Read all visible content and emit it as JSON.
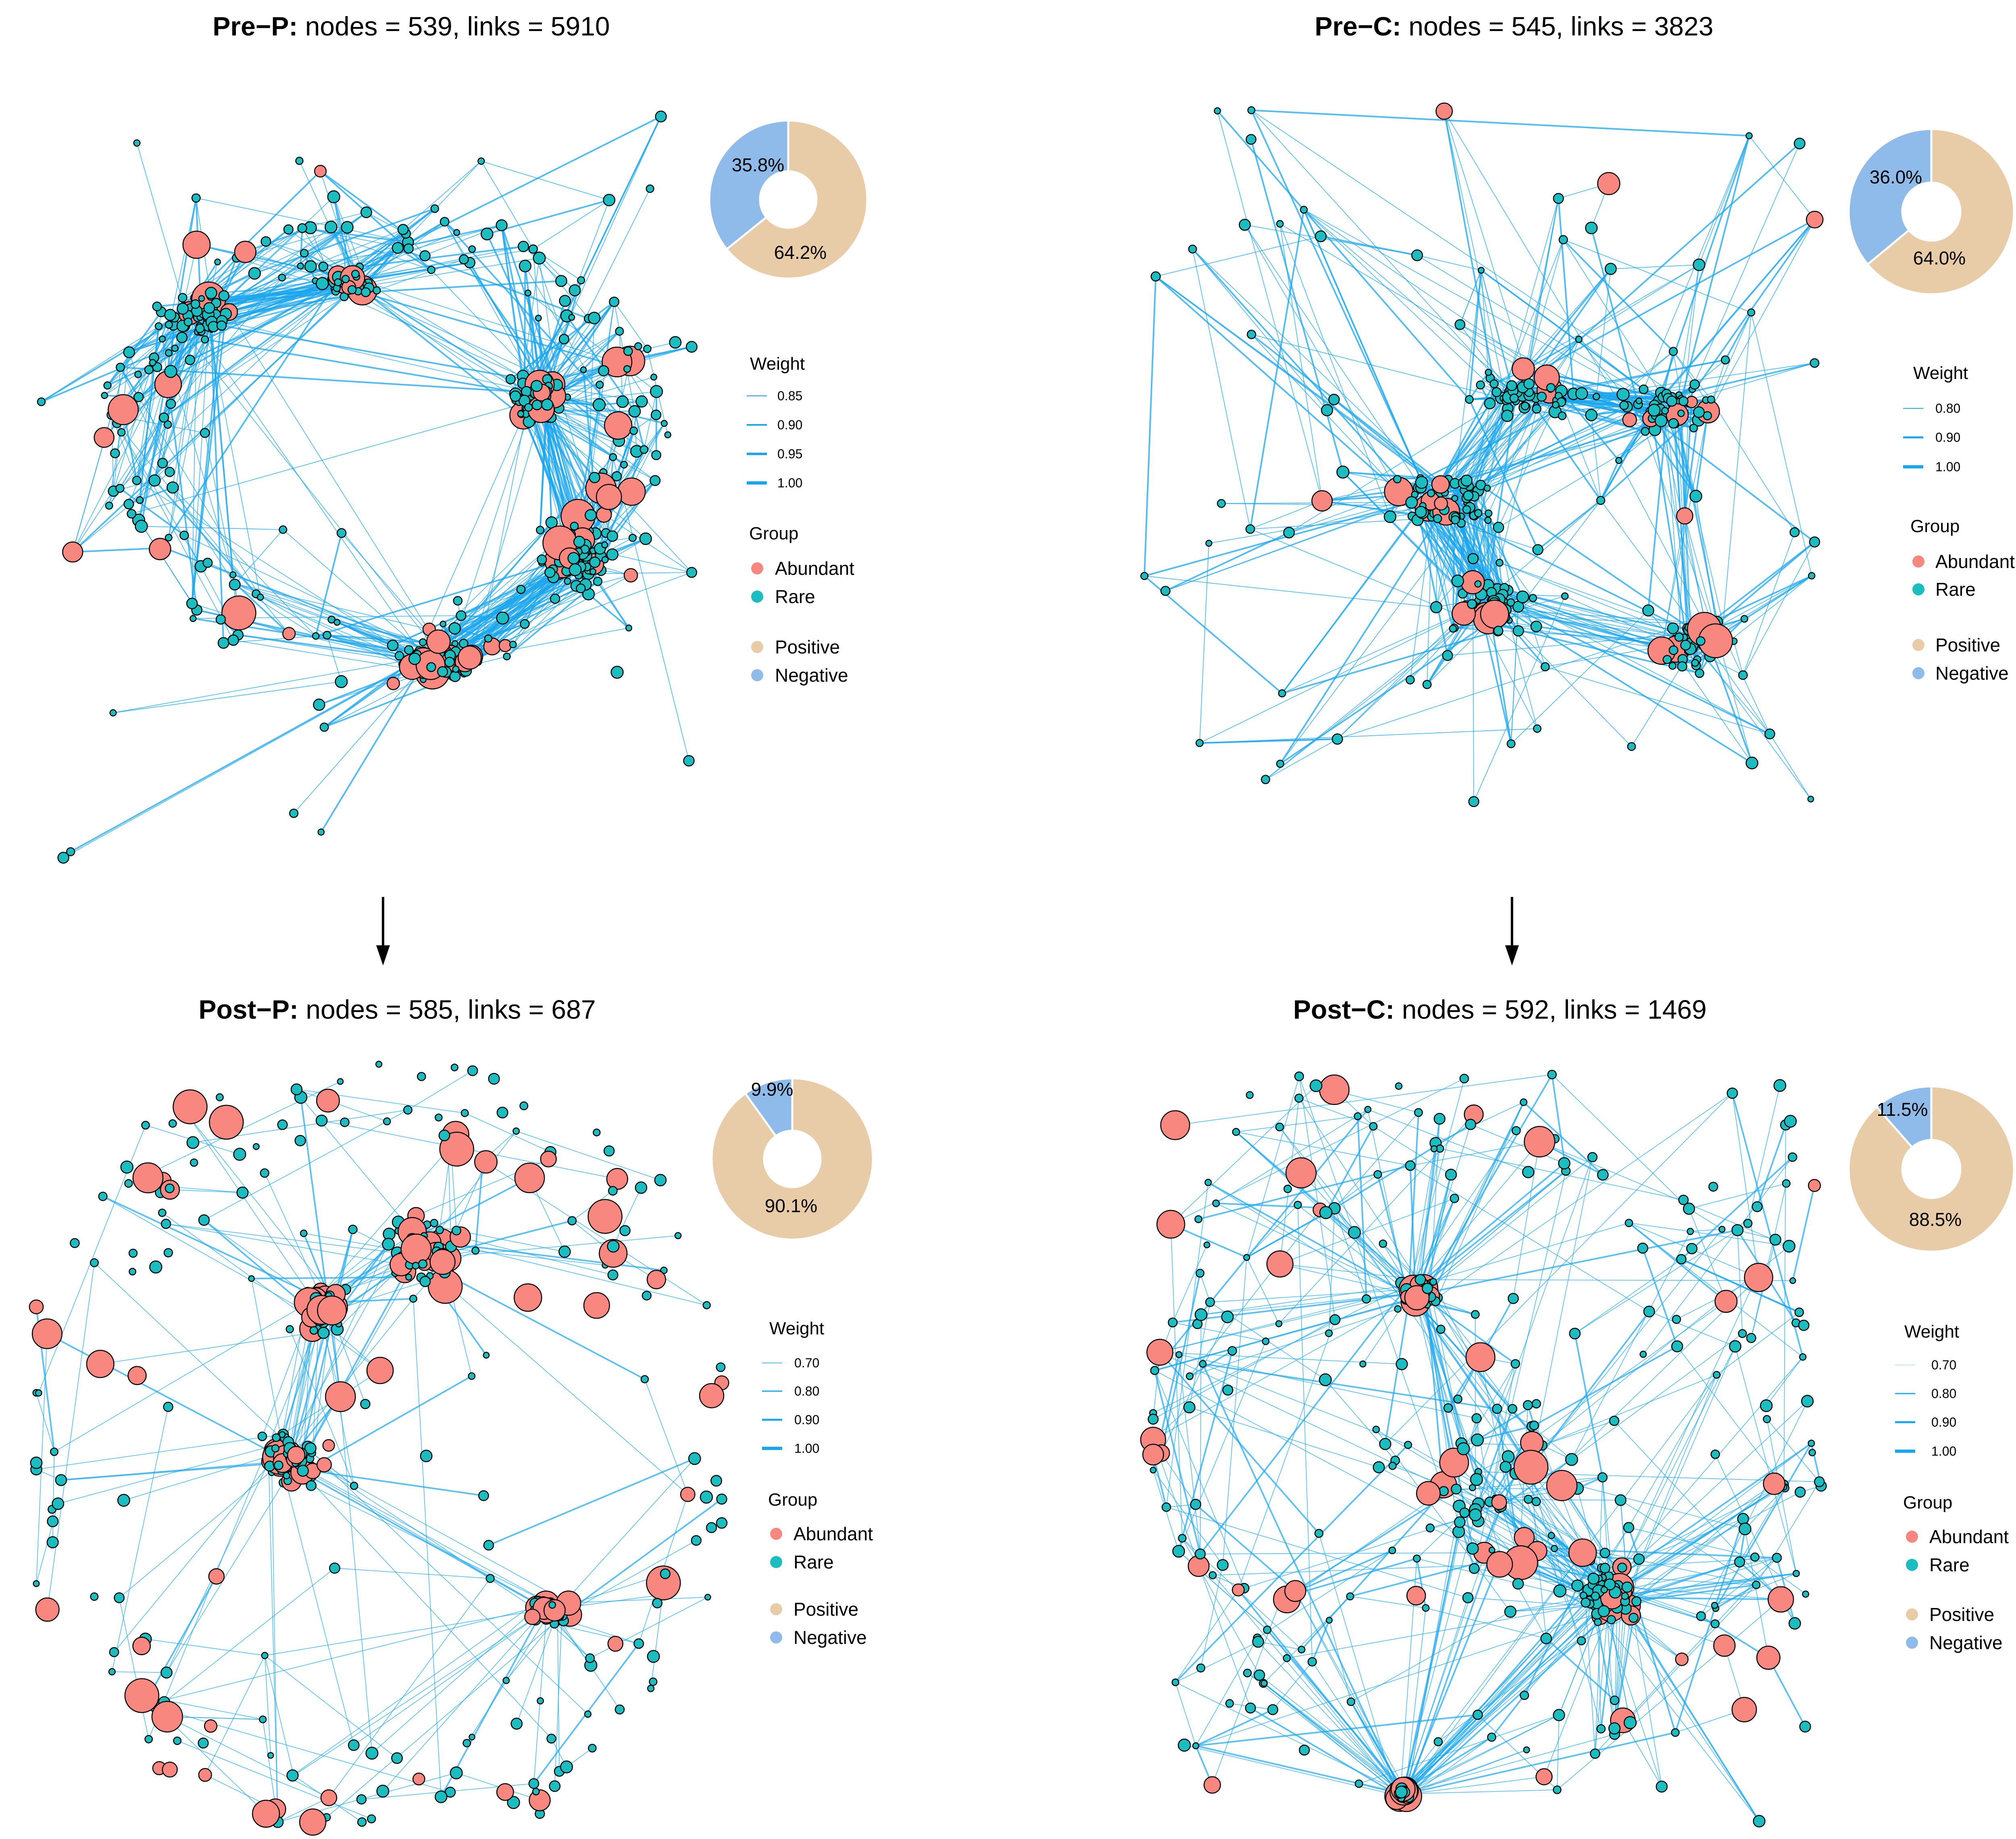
{
  "panels": [
    {
      "id": "pre-p",
      "title_bold": "Pre−P:",
      "title_rest": " nodes = 539, links = 5910",
      "pie": {
        "negative_pct": 35.8,
        "positive_pct": 64.2,
        "negative_label": "35.8%",
        "positive_label": "64.2%"
      },
      "weight_heading": "Weight",
      "weights": [
        "0.85",
        "0.90",
        "0.95",
        "1.00"
      ],
      "group_heading": "Group",
      "groups": [
        "Abundant",
        "Rare"
      ],
      "signs": [
        "Positive",
        "Negative"
      ],
      "network_shape": "ring"
    },
    {
      "id": "pre-c",
      "title_bold": "Pre−C:",
      "title_rest": " nodes = 545, links = 3823",
      "pie": {
        "negative_pct": 36.0,
        "positive_pct": 64.0,
        "negative_label": "36.0%",
        "positive_label": "64.0%"
      },
      "weight_heading": "Weight",
      "weights": [
        "0.80",
        "0.90",
        "1.00"
      ],
      "group_heading": "Group",
      "groups": [
        "Abundant",
        "Rare"
      ],
      "signs": [
        "Positive",
        "Negative"
      ],
      "network_shape": "dense"
    },
    {
      "id": "post-p",
      "title_bold": "Post−P:",
      "title_rest": " nodes = 585, links = 687",
      "pie": {
        "negative_pct": 9.9,
        "positive_pct": 90.1,
        "negative_label": "9.9%",
        "positive_label": "90.1%"
      },
      "weight_heading": "Weight",
      "weights": [
        "0.70",
        "0.80",
        "0.90",
        "1.00"
      ],
      "group_heading": "Group",
      "groups": [
        "Abundant",
        "Rare"
      ],
      "signs": [
        "Positive",
        "Negative"
      ],
      "network_shape": "sparse-ring"
    },
    {
      "id": "post-c",
      "title_bold": "Post−C:",
      "title_rest": " nodes = 592, links = 1469",
      "pie": {
        "negative_pct": 11.5,
        "positive_pct": 88.5,
        "negative_label": "11.5%",
        "positive_label": "88.5%"
      },
      "weight_heading": "Weight",
      "weights": [
        "0.70",
        "0.80",
        "0.90",
        "1.00"
      ],
      "group_heading": "Group",
      "groups": [
        "Abundant",
        "Rare"
      ],
      "signs": [
        "Positive",
        "Negative"
      ],
      "network_shape": "spread"
    }
  ],
  "colors": {
    "abundant": "#F8877F",
    "rare": "#1CBDC0",
    "positive": "#E8CBA7",
    "negative": "#8FBBEA",
    "edge": "#1AA6EC",
    "node_stroke": "#000000",
    "arrow": "#000000"
  }
}
